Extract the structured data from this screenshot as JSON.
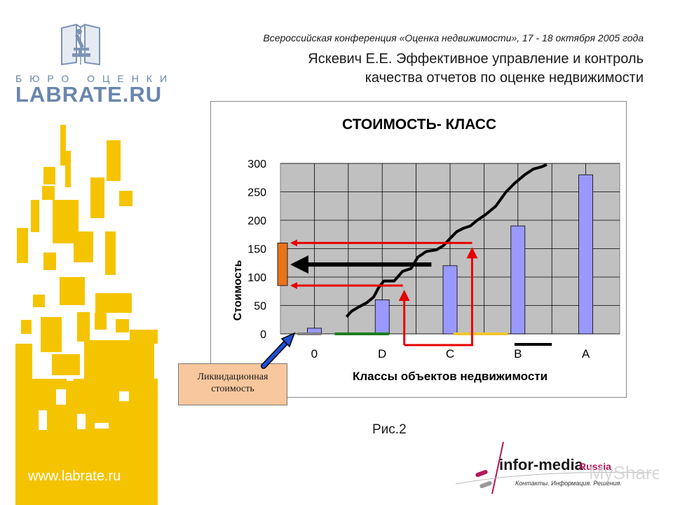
{
  "header": {
    "conference": "Всероссийская конференция «Оценка недвижимости», 17 - 18 октября 2005 года",
    "title_line1": "Яскевич Е.Е. Эффективное управление и контроль",
    "title_line2": "качества отчетов по оценке недвижимости"
  },
  "brand": {
    "subtitle": "БЮРО ОЦЕНКИ",
    "name": "LABRATE.RU",
    "url": "www.labrate.ru",
    "color": "#6a86ad",
    "accent": "#f5c400"
  },
  "chart_data": {
    "type": "bar",
    "title": "СТОИМОСТЬ- КЛАСС",
    "xlabel": "Классы объектов недвижимости",
    "ylabel": "Стоимость",
    "categories": [
      "0",
      "D",
      "C",
      "B",
      "A"
    ],
    "values": [
      10,
      60,
      120,
      190,
      280
    ],
    "ylim": [
      0,
      300
    ],
    "yticks": [
      0,
      50,
      100,
      150,
      200,
      250,
      300
    ],
    "grid": true,
    "bar_color": "#9999ff",
    "plot_bg": "#c0c0c0",
    "curve": {
      "x": [
        1.95,
        2.1,
        2.3,
        2.55,
        2.75,
        2.9,
        3.05,
        3.35,
        3.6,
        3.85,
        4.05,
        4.3,
        4.6,
        4.8,
        5.0,
        5.2,
        5.4,
        5.6,
        5.8,
        6.05,
        6.35,
        6.65,
        6.9,
        7.2,
        7.45,
        7.7,
        7.85
      ],
      "y": [
        30,
        40,
        47,
        55,
        65,
        82,
        93,
        93,
        110,
        115,
        135,
        145,
        148,
        155,
        168,
        180,
        186,
        190,
        200,
        210,
        225,
        250,
        265,
        280,
        290,
        294,
        298
      ]
    },
    "range_low": 85,
    "range_high": 160,
    "range_mid": 122,
    "range_x_low": 3.65,
    "range_x_high": 5.65,
    "class_segments": [
      {
        "from": 0.5,
        "to": 1.2,
        "color": "#808080"
      },
      {
        "from": 1.6,
        "to": 3.2,
        "color": "#1e7d1e"
      },
      {
        "from": 5.1,
        "to": 6.7,
        "color": "#f4c430"
      },
      {
        "from": 6.9,
        "to": 8.0,
        "color": "#000000"
      }
    ],
    "range_color": "#e60000",
    "mid_arrow_color": "#000000",
    "marker_color": "#e8741c"
  },
  "callout": {
    "line1": "Ликвидационная",
    "line2": "стоимость",
    "arrow_color": "#1f4fd8"
  },
  "caption": "Рис.2",
  "footer": {
    "logo_main": "infor-media",
    "logo_region": "Russia",
    "tagline": "Контакты. Информация. Решения.",
    "watermark": "MyShared"
  }
}
